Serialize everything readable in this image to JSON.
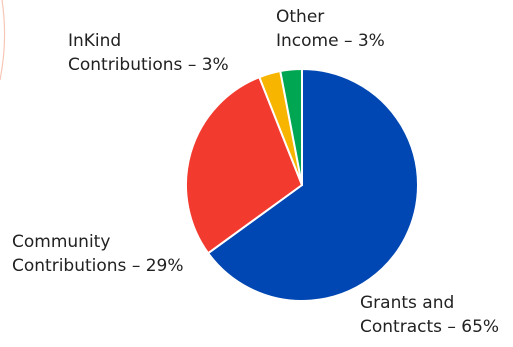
{
  "chart_data": {
    "type": "pie",
    "title": "",
    "slices": [
      {
        "label_line1": "Grants and",
        "label_line2": "Contracts – 65%",
        "value": 65,
        "color": "#0047b3"
      },
      {
        "label_line1": "Community",
        "label_line2": "Contributions – 29%",
        "value": 29,
        "color": "#f23a2e"
      },
      {
        "label_line1": "InKind",
        "label_line2": "Contributions – 3%",
        "value": 3,
        "color": "#f7b500"
      },
      {
        "label_line1": "Other",
        "label_line2": "Income – 3%",
        "value": 3,
        "color": "#00a651"
      }
    ],
    "start_at": "12 o'clock",
    "direction": "clockwise",
    "legend": "none"
  },
  "decor": {
    "corner_arc_color": "#f6c7b6"
  }
}
